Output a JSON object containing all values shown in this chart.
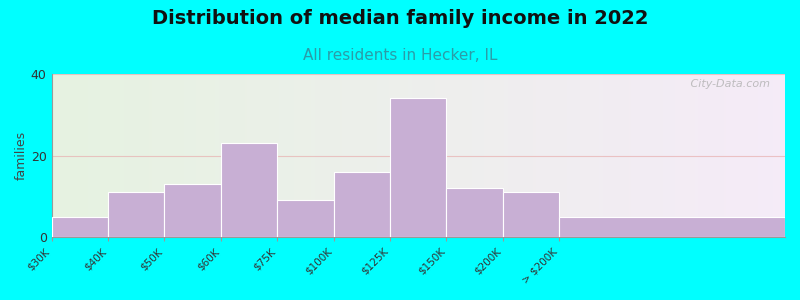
{
  "title": "Distribution of median family income in 2022",
  "subtitle": "All residents in Hecker, IL",
  "ylabel": "families",
  "categories": [
    "$30K",
    "$40K",
    "$50K",
    "$60K",
    "$75K",
    "$100K",
    "$125K",
    "$150K",
    "$200K",
    "> $200K"
  ],
  "values": [
    5,
    11,
    13,
    23,
    9,
    16,
    34,
    12,
    11,
    5
  ],
  "bar_color": "#c8afd4",
  "bar_edgecolor": "#ffffff",
  "ylim": [
    0,
    40
  ],
  "yticks": [
    0,
    20,
    40
  ],
  "background_color": "#00ffff",
  "title_fontsize": 14,
  "subtitle_fontsize": 11,
  "subtitle_color": "#2a9da8",
  "ylabel_fontsize": 9,
  "watermark_text": " City-Data.com",
  "grid_color": "#e8b0b0",
  "grid_alpha": 0.7,
  "bin_edges": [
    0,
    1,
    2,
    3,
    4,
    5,
    6,
    7,
    8,
    9,
    13
  ],
  "tick_positions": [
    0,
    1,
    2,
    3,
    4,
    5,
    6,
    7,
    8,
    9,
    13
  ]
}
